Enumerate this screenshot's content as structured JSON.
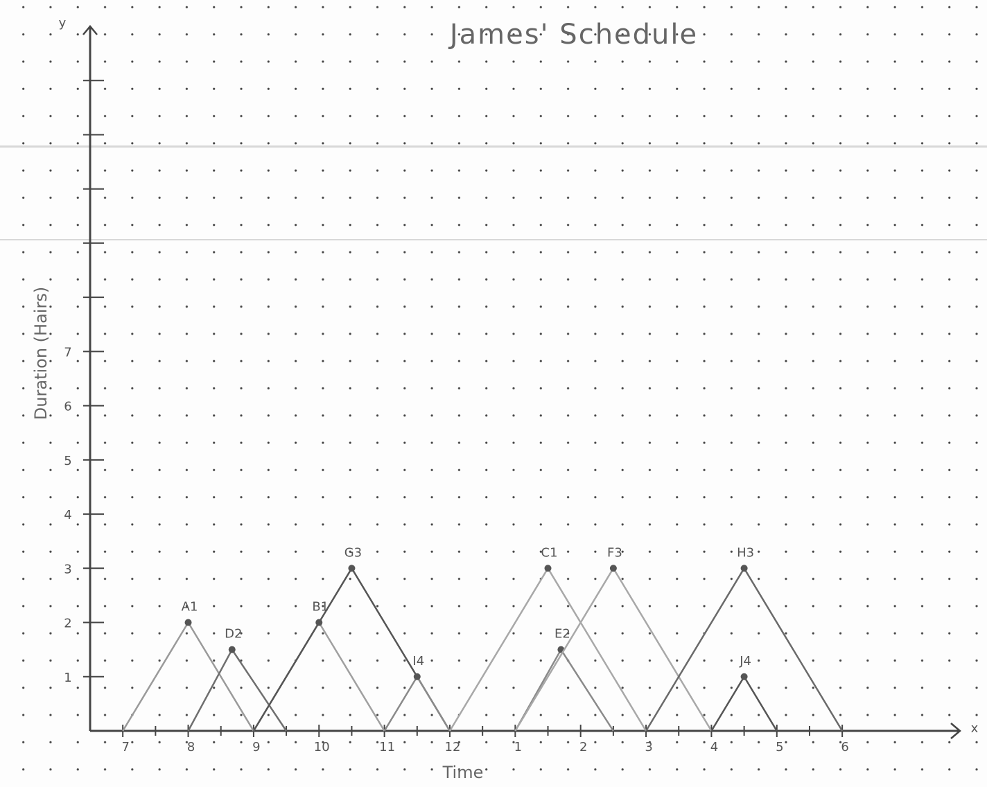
{
  "chart_data": {
    "type": "line",
    "title": "James' Schedule",
    "xlabel": "Time",
    "ylabel": "Duration (Hairs)",
    "x_axis_name": "x",
    "y_axis_name": "y",
    "xlim": [
      6.5,
      19.8
    ],
    "ylim": [
      0,
      13
    ],
    "xticks": [
      7,
      8,
      9,
      10,
      11,
      12,
      {
        "value": 13,
        "label": "1"
      },
      {
        "value": 14,
        "label": "2"
      },
      {
        "value": 15,
        "label": "3"
      },
      {
        "value": 16,
        "label": "4"
      },
      {
        "value": 17,
        "label": "5"
      },
      {
        "value": 18,
        "label": "6"
      }
    ],
    "minor_xticks": [
      7.5,
      8.5,
      9.5,
      10.5,
      11.5,
      12.5,
      13.5,
      14.5,
      15.5,
      16.5,
      17.5
    ],
    "yticks": [
      1,
      2,
      3,
      4,
      5,
      6,
      7
    ],
    "minor_yticks": [
      8,
      9,
      10,
      11,
      12
    ],
    "series": [
      {
        "name": "A1",
        "color": "#9a9a9a",
        "x": [
          7,
          8,
          9
        ],
        "values": [
          0,
          2,
          0
        ]
      },
      {
        "name": "D2",
        "color": "#6f6f6f",
        "x": [
          8,
          8.67,
          9.5
        ],
        "values": [
          0,
          1.5,
          0
        ]
      },
      {
        "name": "B1",
        "color": "#a0a0a0",
        "x": [
          9,
          10,
          11
        ],
        "values": [
          0,
          2,
          0
        ]
      },
      {
        "name": "G3",
        "color": "#555555",
        "x": [
          9,
          10.5,
          12
        ],
        "values": [
          0,
          3,
          0
        ]
      },
      {
        "name": "I4",
        "color": "#8a8a8a",
        "x": [
          11,
          11.5,
          12
        ],
        "values": [
          0,
          1,
          0
        ]
      },
      {
        "name": "C1",
        "color": "#a8a8a8",
        "x": [
          12,
          13.5,
          15
        ],
        "values": [
          0,
          3,
          0
        ]
      },
      {
        "name": "E2",
        "color": "#8a8a8a",
        "x": [
          13,
          13.7,
          14.5
        ],
        "values": [
          0,
          1.5,
          0
        ]
      },
      {
        "name": "F3",
        "color": "#a8a8a8",
        "x": [
          13,
          14.5,
          16
        ],
        "values": [
          0,
          3,
          0
        ]
      },
      {
        "name": "H3",
        "color": "#6a6a6a",
        "x": [
          15,
          16.5,
          18
        ],
        "values": [
          0,
          3,
          0
        ]
      },
      {
        "name": "J4",
        "color": "#555555",
        "x": [
          16,
          16.5,
          17
        ],
        "values": [
          0,
          1,
          0
        ]
      }
    ]
  }
}
